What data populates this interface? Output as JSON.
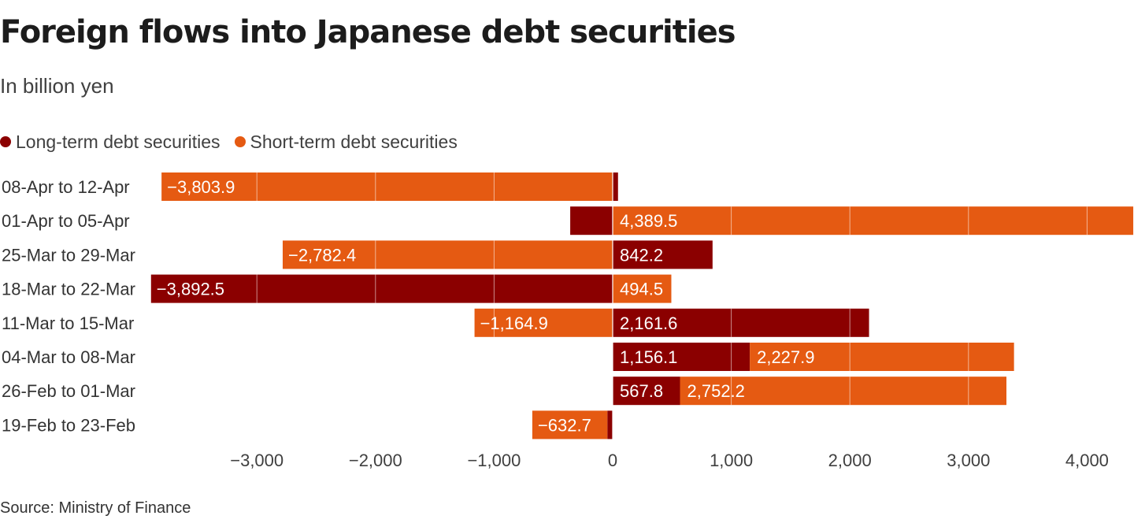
{
  "title": "Foreign flows into Japanese debt securities",
  "subtitle": "In billion yen",
  "source": "Source: Ministry of Finance",
  "legend": [
    {
      "label": "Long-term debt securities",
      "color": "#8b0000"
    },
    {
      "label": "Short-term debt securities",
      "color": "#e55a12"
    }
  ],
  "chart_data": {
    "type": "bar",
    "orientation": "horizontal",
    "stacked": true,
    "title": "Foreign flows into Japanese debt securities",
    "subtitle": "In billion yen",
    "categories": [
      "08-Apr to 12-Apr",
      "01-Apr to 05-Apr",
      "25-Mar to 29-Mar",
      "18-Mar to 22-Mar",
      "11-Mar to 15-Mar",
      "04-Mar to 08-Mar",
      "26-Feb to 01-Mar",
      "19-Feb to 23-Feb"
    ],
    "series": [
      {
        "name": "Long-term debt securities",
        "color": "#8b0000",
        "values": [
          45,
          -358,
          842.2,
          -3892.5,
          2161.6,
          1156.1,
          567.8,
          -45
        ],
        "labels": [
          "",
          "",
          "842.2",
          "−3,892.5",
          "2,161.6",
          "1,156.1",
          "567.8",
          ""
        ]
      },
      {
        "name": "Short-term debt securities",
        "color": "#e55a12",
        "values": [
          -3803.9,
          4389.5,
          -2782.4,
          494.5,
          -1164.9,
          2227.9,
          2752.2,
          -632.7
        ],
        "labels": [
          "−3,803.9",
          "4,389.5",
          "−2,782.4",
          "494.5",
          "−1,164.9",
          "2,227.9",
          "2,752.2",
          "−632.7"
        ]
      }
    ],
    "xlim": [
      -3850,
      4400
    ],
    "xticks": [
      -3000,
      -2000,
      -1000,
      0,
      1000,
      2000,
      3000,
      4000
    ],
    "xtick_labels": [
      "−3,000",
      "−2,000",
      "−1,000",
      "0",
      "1,000",
      "2,000",
      "3,000",
      "4,000"
    ],
    "grid": true,
    "legend_position": "top-left"
  }
}
